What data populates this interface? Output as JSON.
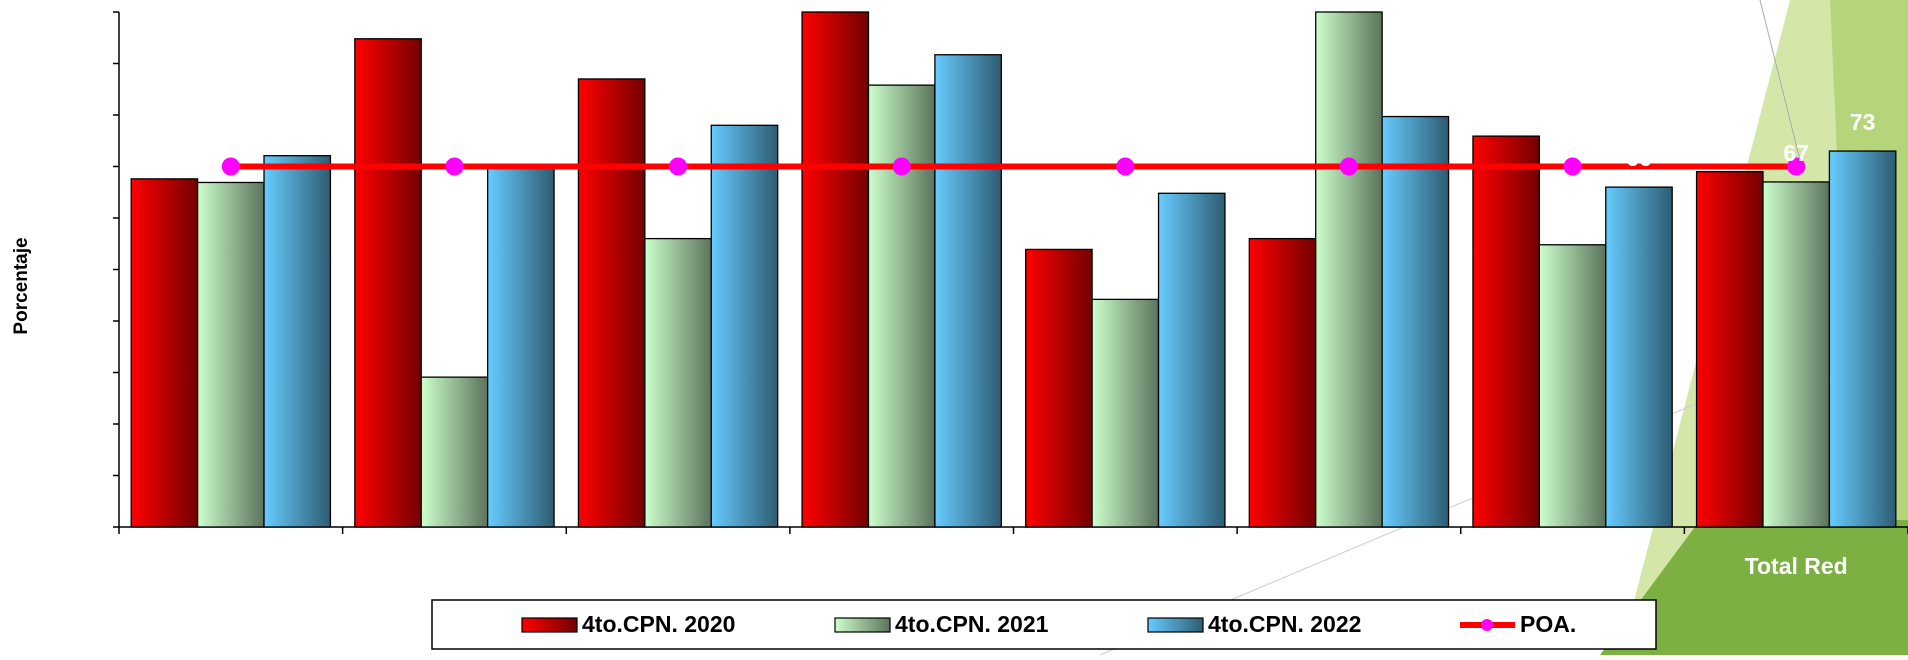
{
  "chart_data": {
    "type": "bar",
    "y_label": "Porcentaje",
    "categories": [
      null,
      null,
      null,
      null,
      null,
      null,
      null,
      "Total Red"
    ],
    "ylim": [
      0,
      100
    ],
    "yticks": [
      0,
      10,
      20,
      30,
      40,
      50,
      60,
      70,
      80,
      90,
      100
    ],
    "grid": false,
    "series": [
      {
        "name": "4to.CPN. 2020",
        "color": "#ff0000",
        "values": [
          67.6,
          94.8,
          87,
          100,
          53.9,
          56,
          75.9,
          69
        ]
      },
      {
        "name": "4to.CPN. 2021",
        "color": "#ccffcc",
        "values": [
          66.9,
          29.1,
          56,
          85.8,
          44.2,
          100,
          54.8,
          67
        ],
        "value_labels": [
          null,
          null,
          null,
          null,
          null,
          null,
          null,
          "67"
        ]
      },
      {
        "name": "4to.CPN. 2022",
        "color": "#66ccff",
        "values": [
          72.1,
          70,
          78,
          91.7,
          64.8,
          79.7,
          66,
          73
        ],
        "value_labels": [
          null,
          null,
          null,
          null,
          null,
          null,
          "66",
          "73"
        ]
      },
      {
        "name": "POA.",
        "type": "line",
        "color": "#ff0000",
        "marker_color": "#ff00ff",
        "values": [
          70,
          70,
          70,
          70,
          70,
          70,
          70,
          70
        ]
      }
    ],
    "legend": "bottom"
  }
}
